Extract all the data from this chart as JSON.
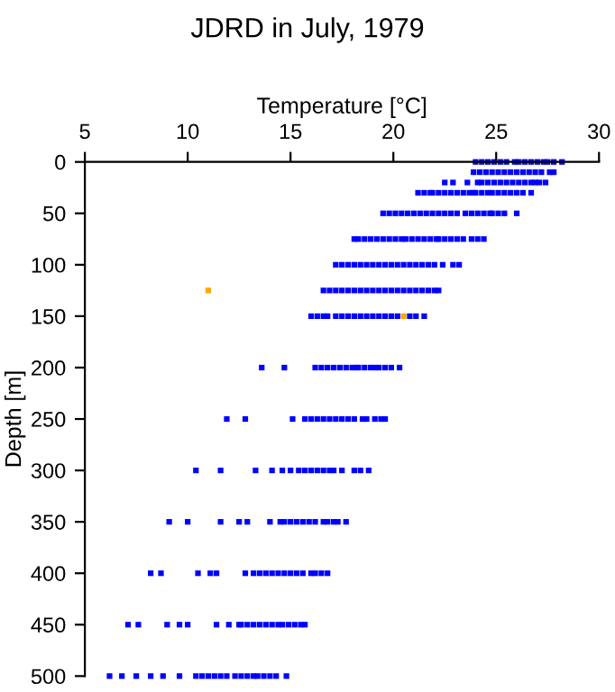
{
  "chart_data": {
    "type": "scatter",
    "title": "JDRD in July, 1979",
    "xlabel": "Temperature [°C]",
    "ylabel": "Depth [m]",
    "xlim": [
      5,
      30
    ],
    "xticks": [
      5,
      10,
      15,
      20,
      25,
      30
    ],
    "ylim": [
      500,
      0
    ],
    "yticks": [
      0,
      50,
      100,
      150,
      200,
      250,
      300,
      350,
      400,
      450,
      500
    ],
    "grid": false,
    "legend": false,
    "marker": "square",
    "series": [
      {
        "color": "#0000ff",
        "x": [
          24.0,
          24.3,
          24.6,
          24.9,
          25.2,
          25.5,
          25.9,
          26.1,
          26.4,
          26.7,
          27.0,
          27.3,
          27.5,
          27.8,
          28.2,
          23.9,
          24.2,
          24.5,
          24.8,
          25.1,
          25.4,
          25.7,
          26.0,
          26.3,
          26.6,
          26.9,
          27.2,
          27.6,
          27.8,
          22.5,
          22.9,
          23.6,
          24.1,
          24.3,
          24.6,
          24.9,
          25.2,
          25.5,
          25.8,
          26.1,
          26.4,
          26.7,
          26.9,
          27.1,
          27.4,
          21.2,
          21.5,
          21.8,
          21.9,
          22.2,
          22.5,
          22.8,
          23.1,
          23.4,
          23.7,
          23.9,
          24.0,
          24.3,
          24.6,
          24.8,
          25.1,
          25.4,
          25.7,
          26.0,
          26.3,
          26.7,
          19.5,
          19.8,
          20.1,
          20.4,
          20.7,
          21.0,
          21.3,
          21.6,
          21.9,
          22.2,
          22.5,
          22.8,
          23.1,
          23.5,
          23.8,
          24.1,
          24.4,
          24.7,
          24.8,
          25.1,
          25.4,
          26.0,
          18.1,
          18.3,
          18.6,
          18.9,
          19.2,
          19.5,
          19.8,
          20.1,
          20.4,
          20.6,
          20.9,
          21.2,
          21.5,
          21.8,
          22.1,
          22.2,
          22.5,
          22.8,
          23.1,
          23.4,
          23.8,
          24.1,
          24.4,
          17.2,
          17.5,
          17.8,
          18.1,
          18.4,
          18.7,
          19.0,
          19.3,
          19.6,
          19.9,
          20.2,
          20.5,
          20.8,
          21.1,
          21.4,
          21.7,
          22.0,
          22.4,
          22.9,
          23.2,
          16.6,
          16.9,
          17.2,
          17.5,
          17.8,
          18.1,
          18.4,
          18.7,
          19.0,
          19.3,
          19.6,
          19.9,
          20.2,
          20.5,
          20.8,
          21.1,
          21.4,
          21.7,
          22.0,
          22.2,
          16.0,
          16.3,
          16.6,
          16.8,
          17.2,
          17.5,
          17.8,
          18.1,
          18.4,
          18.7,
          19.0,
          19.3,
          19.6,
          19.9,
          20.2,
          20.8,
          21.1,
          21.5,
          13.6,
          14.7,
          16.2,
          16.5,
          16.8,
          17.1,
          17.4,
          17.7,
          18.0,
          18.2,
          18.3,
          18.6,
          18.9,
          19.1,
          19.3,
          19.6,
          19.9,
          20.3,
          11.9,
          12.8,
          15.1,
          15.7,
          16.0,
          16.3,
          16.6,
          16.9,
          17.2,
          17.5,
          17.8,
          18.1,
          18.5,
          18.7,
          19.1,
          19.4,
          19.6,
          10.4,
          11.6,
          13.3,
          14.1,
          14.6,
          15.0,
          15.4,
          15.7,
          16.0,
          16.3,
          16.6,
          16.9,
          17.1,
          17.5,
          18.1,
          18.4,
          18.8,
          9.1,
          10.0,
          11.6,
          12.5,
          12.9,
          14.0,
          14.5,
          14.7,
          15.0,
          15.3,
          15.6,
          15.9,
          16.2,
          16.6,
          16.8,
          17.1,
          17.3,
          17.7,
          8.2,
          8.7,
          10.5,
          11.1,
          11.4,
          12.8,
          13.2,
          13.5,
          13.8,
          14.1,
          14.4,
          14.7,
          15.0,
          15.3,
          15.6,
          16.0,
          16.2,
          16.5,
          16.8,
          7.1,
          7.6,
          9.0,
          9.6,
          10.0,
          11.4,
          12.0,
          12.5,
          12.6,
          12.9,
          13.2,
          13.5,
          13.8,
          14.1,
          14.4,
          14.6,
          14.9,
          15.2,
          15.5,
          15.7,
          6.2,
          6.8,
          7.5,
          8.2,
          8.8,
          9.6,
          10.4,
          10.7,
          11.0,
          11.3,
          11.6,
          11.9,
          12.3,
          12.6,
          12.9,
          13.2,
          13.4,
          13.7,
          14.0,
          14.3,
          14.8
        ],
        "values": [
          0,
          0,
          0,
          0,
          0,
          0,
          0,
          0,
          0,
          0,
          0,
          0,
          0,
          0,
          0,
          10,
          10,
          10,
          10,
          10,
          10,
          10,
          10,
          10,
          10,
          10,
          10,
          10,
          10,
          20,
          20,
          20,
          20,
          20,
          20,
          20,
          20,
          20,
          20,
          20,
          20,
          20,
          20,
          20,
          20,
          30,
          30,
          30,
          30,
          30,
          30,
          30,
          30,
          30,
          30,
          30,
          30,
          30,
          30,
          30,
          30,
          30,
          30,
          30,
          30,
          30,
          50,
          50,
          50,
          50,
          50,
          50,
          50,
          50,
          50,
          50,
          50,
          50,
          50,
          50,
          50,
          50,
          50,
          50,
          50,
          50,
          50,
          50,
          75,
          75,
          75,
          75,
          75,
          75,
          75,
          75,
          75,
          75,
          75,
          75,
          75,
          75,
          75,
          75,
          75,
          75,
          75,
          75,
          75,
          75,
          75,
          100,
          100,
          100,
          100,
          100,
          100,
          100,
          100,
          100,
          100,
          100,
          100,
          100,
          100,
          100,
          100,
          100,
          100,
          100,
          100,
          125,
          125,
          125,
          125,
          125,
          125,
          125,
          125,
          125,
          125,
          125,
          125,
          125,
          125,
          125,
          125,
          125,
          125,
          125,
          125,
          150,
          150,
          150,
          150,
          150,
          150,
          150,
          150,
          150,
          150,
          150,
          150,
          150,
          150,
          150,
          150,
          150,
          150,
          200,
          200,
          200,
          200,
          200,
          200,
          200,
          200,
          200,
          200,
          200,
          200,
          200,
          200,
          200,
          200,
          200,
          200,
          250,
          250,
          250,
          250,
          250,
          250,
          250,
          250,
          250,
          250,
          250,
          250,
          250,
          250,
          250,
          250,
          250,
          300,
          300,
          300,
          300,
          300,
          300,
          300,
          300,
          300,
          300,
          300,
          300,
          300,
          300,
          300,
          300,
          300,
          350,
          350,
          350,
          350,
          350,
          350,
          350,
          350,
          350,
          350,
          350,
          350,
          350,
          350,
          350,
          350,
          350,
          350,
          400,
          400,
          400,
          400,
          400,
          400,
          400,
          400,
          400,
          400,
          400,
          400,
          400,
          400,
          400,
          400,
          400,
          400,
          400,
          450,
          450,
          450,
          450,
          450,
          450,
          450,
          450,
          450,
          450,
          450,
          450,
          450,
          450,
          450,
          450,
          450,
          450,
          450,
          450,
          500,
          500,
          500,
          500,
          500,
          500,
          500,
          500,
          500,
          500,
          500,
          500,
          500,
          500,
          500,
          500,
          500,
          500,
          500,
          500,
          500
        ]
      },
      {
        "color": "#ffa500",
        "x": [
          11.0,
          20.5
        ],
        "values": [
          125,
          150
        ]
      }
    ]
  }
}
